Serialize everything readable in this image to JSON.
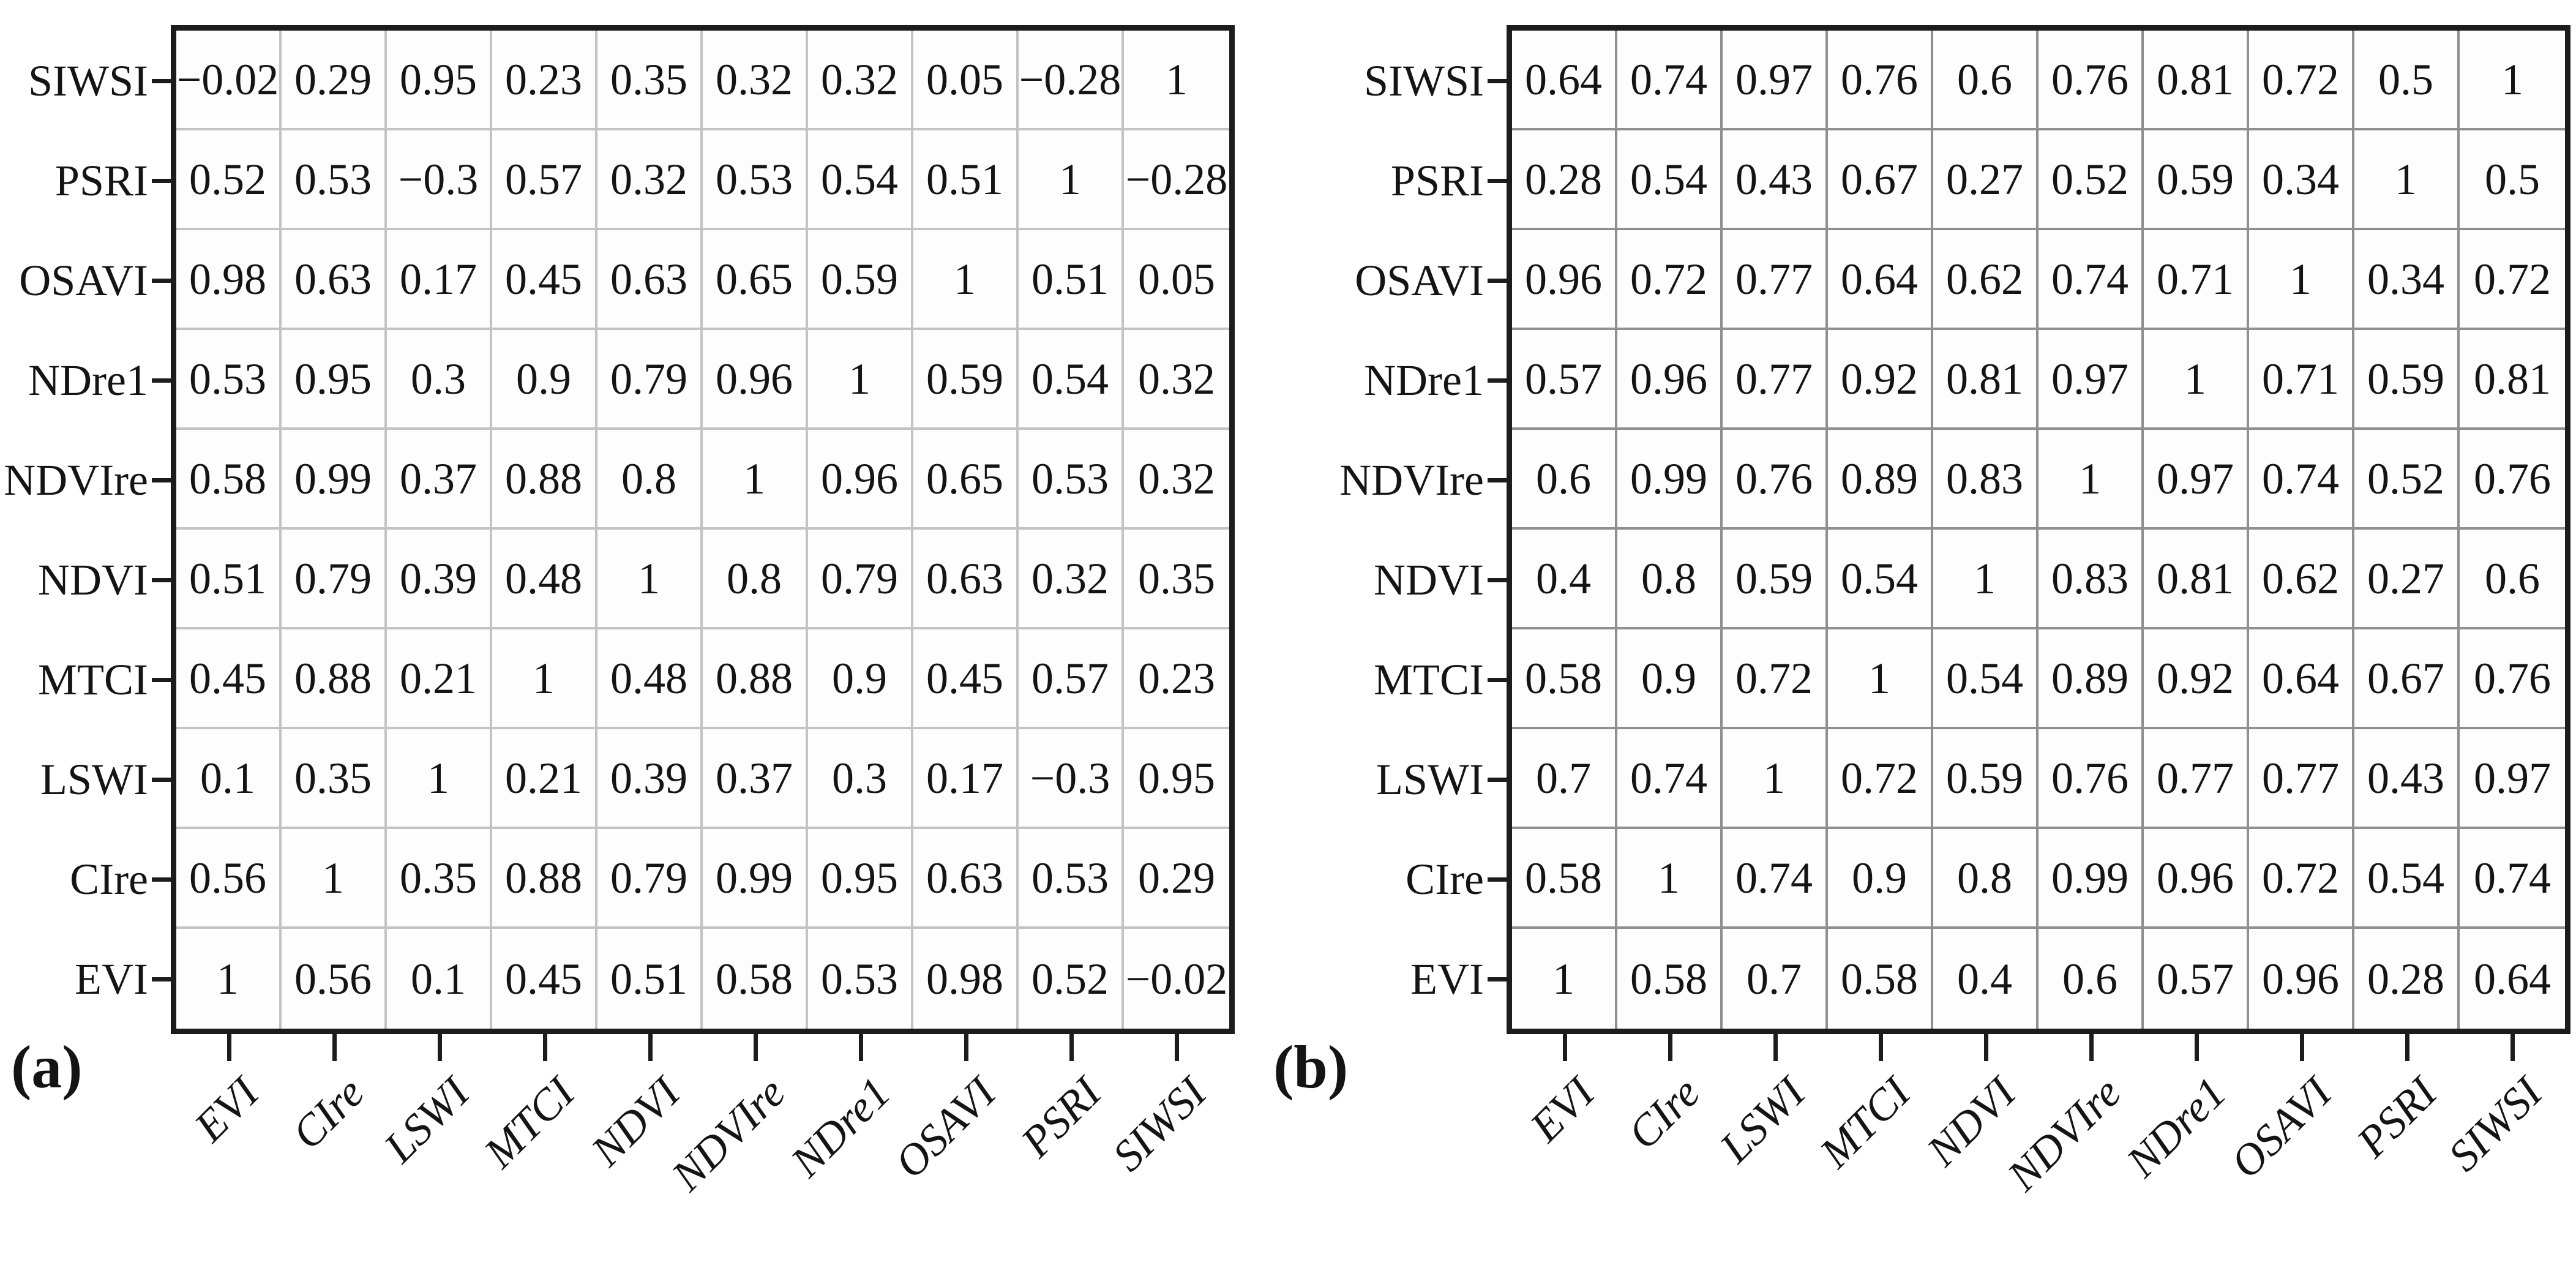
{
  "figure": {
    "background": "#ffffff",
    "text_color": "#141414",
    "axis_border_color": "#1c1c1c",
    "panels": [
      {
        "id": "a",
        "caption": "(a)",
        "grid_color": "#c3c3c3",
        "y_labels_top_to_bottom": [
          "SIWSI",
          "PSRI",
          "OSAVI",
          "NDre1",
          "NDVIre",
          "NDVI",
          "MTCI",
          "LSWI",
          "CIre",
          "EVI"
        ],
        "x_labels_left_to_right": [
          "EVI",
          "CIre",
          "LSWI",
          "MTCI",
          "NDVI",
          "NDVIre",
          "NDre1",
          "OSAVI",
          "PSRI",
          "SIWSI"
        ],
        "cells": [
          [
            "−0.02",
            "0.29",
            "0.95",
            "0.23",
            "0.35",
            "0.32",
            "0.32",
            "0.05",
            "−0.28",
            "1"
          ],
          [
            "0.52",
            "0.53",
            "−0.3",
            "0.57",
            "0.32",
            "0.53",
            "0.54",
            "0.51",
            "1",
            "−0.28"
          ],
          [
            "0.98",
            "0.63",
            "0.17",
            "0.45",
            "0.63",
            "0.65",
            "0.59",
            "1",
            "0.51",
            "0.05"
          ],
          [
            "0.53",
            "0.95",
            "0.3",
            "0.9",
            "0.79",
            "0.96",
            "1",
            "0.59",
            "0.54",
            "0.32"
          ],
          [
            "0.58",
            "0.99",
            "0.37",
            "0.88",
            "0.8",
            "1",
            "0.96",
            "0.65",
            "0.53",
            "0.32"
          ],
          [
            "0.51",
            "0.79",
            "0.39",
            "0.48",
            "1",
            "0.8",
            "0.79",
            "0.63",
            "0.32",
            "0.35"
          ],
          [
            "0.45",
            "0.88",
            "0.21",
            "1",
            "0.48",
            "0.88",
            "0.9",
            "0.45",
            "0.57",
            "0.23"
          ],
          [
            "0.1",
            "0.35",
            "1",
            "0.21",
            "0.39",
            "0.37",
            "0.3",
            "0.17",
            "−0.3",
            "0.95"
          ],
          [
            "0.56",
            "1",
            "0.35",
            "0.88",
            "0.79",
            "0.99",
            "0.95",
            "0.63",
            "0.53",
            "0.29"
          ],
          [
            "1",
            "0.56",
            "0.1",
            "0.45",
            "0.51",
            "0.58",
            "0.53",
            "0.98",
            "0.52",
            "−0.02"
          ]
        ]
      },
      {
        "id": "b",
        "caption": "(b)",
        "grid_color": "#8f8f8f",
        "y_labels_top_to_bottom": [
          "SIWSI",
          "PSRI",
          "OSAVI",
          "NDre1",
          "NDVIre",
          "NDVI",
          "MTCI",
          "LSWI",
          "CIre",
          "EVI"
        ],
        "x_labels_left_to_right": [
          "EVI",
          "CIre",
          "LSWI",
          "MTCI",
          "NDVI",
          "NDVIre",
          "NDre1",
          "OSAVI",
          "PSRI",
          "SIWSI"
        ],
        "cells": [
          [
            "0.64",
            "0.74",
            "0.97",
            "0.76",
            "0.6",
            "0.76",
            "0.81",
            "0.72",
            "0.5",
            "1"
          ],
          [
            "0.28",
            "0.54",
            "0.43",
            "0.67",
            "0.27",
            "0.52",
            "0.59",
            "0.34",
            "1",
            "0.5"
          ],
          [
            "0.96",
            "0.72",
            "0.77",
            "0.64",
            "0.62",
            "0.74",
            "0.71",
            "1",
            "0.34",
            "0.72"
          ],
          [
            "0.57",
            "0.96",
            "0.77",
            "0.92",
            "0.81",
            "0.97",
            "1",
            "0.71",
            "0.59",
            "0.81"
          ],
          [
            "0.6",
            "0.99",
            "0.76",
            "0.89",
            "0.83",
            "1",
            "0.97",
            "0.74",
            "0.52",
            "0.76"
          ],
          [
            "0.4",
            "0.8",
            "0.59",
            "0.54",
            "1",
            "0.83",
            "0.81",
            "0.62",
            "0.27",
            "0.6"
          ],
          [
            "0.58",
            "0.9",
            "0.72",
            "1",
            "0.54",
            "0.89",
            "0.92",
            "0.64",
            "0.67",
            "0.76"
          ],
          [
            "0.7",
            "0.74",
            "1",
            "0.72",
            "0.59",
            "0.76",
            "0.77",
            "0.77",
            "0.43",
            "0.97"
          ],
          [
            "0.58",
            "1",
            "0.74",
            "0.9",
            "0.8",
            "0.99",
            "0.96",
            "0.72",
            "0.54",
            "0.74"
          ],
          [
            "1",
            "0.58",
            "0.7",
            "0.58",
            "0.4",
            "0.6",
            "0.57",
            "0.96",
            "0.28",
            "0.64"
          ]
        ]
      }
    ]
  },
  "chart_data": [
    {
      "type": "heatmap",
      "title": "(a)",
      "x_categories": [
        "EVI",
        "CIre",
        "LSWI",
        "MTCI",
        "NDVI",
        "NDVIre",
        "NDre1",
        "OSAVI",
        "PSRI",
        "SIWSI"
      ],
      "y_categories_top_to_bottom": [
        "SIWSI",
        "PSRI",
        "OSAVI",
        "NDre1",
        "NDVIre",
        "NDVI",
        "MTCI",
        "LSWI",
        "CIre",
        "EVI"
      ],
      "values_rows_top_to_bottom": [
        [
          -0.02,
          0.29,
          0.95,
          0.23,
          0.35,
          0.32,
          0.32,
          0.05,
          -0.28,
          1
        ],
        [
          0.52,
          0.53,
          -0.3,
          0.57,
          0.32,
          0.53,
          0.54,
          0.51,
          1,
          -0.28
        ],
        [
          0.98,
          0.63,
          0.17,
          0.45,
          0.63,
          0.65,
          0.59,
          1,
          0.51,
          0.05
        ],
        [
          0.53,
          0.95,
          0.3,
          0.9,
          0.79,
          0.96,
          1,
          0.59,
          0.54,
          0.32
        ],
        [
          0.58,
          0.99,
          0.37,
          0.88,
          0.8,
          1,
          0.96,
          0.65,
          0.53,
          0.32
        ],
        [
          0.51,
          0.79,
          0.39,
          0.48,
          1,
          0.8,
          0.79,
          0.63,
          0.32,
          0.35
        ],
        [
          0.45,
          0.88,
          0.21,
          1,
          0.48,
          0.88,
          0.9,
          0.45,
          0.57,
          0.23
        ],
        [
          0.1,
          0.35,
          1,
          0.21,
          0.39,
          0.37,
          0.3,
          0.17,
          -0.3,
          0.95
        ],
        [
          0.56,
          1,
          0.35,
          0.88,
          0.79,
          0.99,
          0.95,
          0.63,
          0.53,
          0.29
        ],
        [
          1,
          0.56,
          0.1,
          0.45,
          0.51,
          0.58,
          0.53,
          0.98,
          0.52,
          -0.02
        ]
      ],
      "value_range": [
        -1,
        1
      ],
      "grid": true,
      "legend": false,
      "cell_fill": "none (values shown as text)"
    },
    {
      "type": "heatmap",
      "title": "(b)",
      "x_categories": [
        "EVI",
        "CIre",
        "LSWI",
        "MTCI",
        "NDVI",
        "NDVIre",
        "NDre1",
        "OSAVI",
        "PSRI",
        "SIWSI"
      ],
      "y_categories_top_to_bottom": [
        "SIWSI",
        "PSRI",
        "OSAVI",
        "NDre1",
        "NDVIre",
        "NDVI",
        "MTCI",
        "LSWI",
        "CIre",
        "EVI"
      ],
      "values_rows_top_to_bottom": [
        [
          0.64,
          0.74,
          0.97,
          0.76,
          0.6,
          0.76,
          0.81,
          0.72,
          0.5,
          1
        ],
        [
          0.28,
          0.54,
          0.43,
          0.67,
          0.27,
          0.52,
          0.59,
          0.34,
          1,
          0.5
        ],
        [
          0.96,
          0.72,
          0.77,
          0.64,
          0.62,
          0.74,
          0.71,
          1,
          0.34,
          0.72
        ],
        [
          0.57,
          0.96,
          0.77,
          0.92,
          0.81,
          0.97,
          1,
          0.71,
          0.59,
          0.81
        ],
        [
          0.6,
          0.99,
          0.76,
          0.89,
          0.83,
          1,
          0.97,
          0.74,
          0.52,
          0.76
        ],
        [
          0.4,
          0.8,
          0.59,
          0.54,
          1,
          0.83,
          0.81,
          0.62,
          0.27,
          0.6
        ],
        [
          0.58,
          0.9,
          0.72,
          1,
          0.54,
          0.89,
          0.92,
          0.64,
          0.67,
          0.76
        ],
        [
          0.7,
          0.74,
          1,
          0.72,
          0.59,
          0.76,
          0.77,
          0.77,
          0.43,
          0.97
        ],
        [
          0.58,
          1,
          0.74,
          0.9,
          0.8,
          0.99,
          0.96,
          0.72,
          0.54,
          0.74
        ],
        [
          1,
          0.58,
          0.7,
          0.58,
          0.4,
          0.6,
          0.57,
          0.96,
          0.28,
          0.64
        ]
      ],
      "value_range": [
        -1,
        1
      ],
      "grid": true,
      "legend": false,
      "cell_fill": "none (values shown as text)"
    }
  ]
}
